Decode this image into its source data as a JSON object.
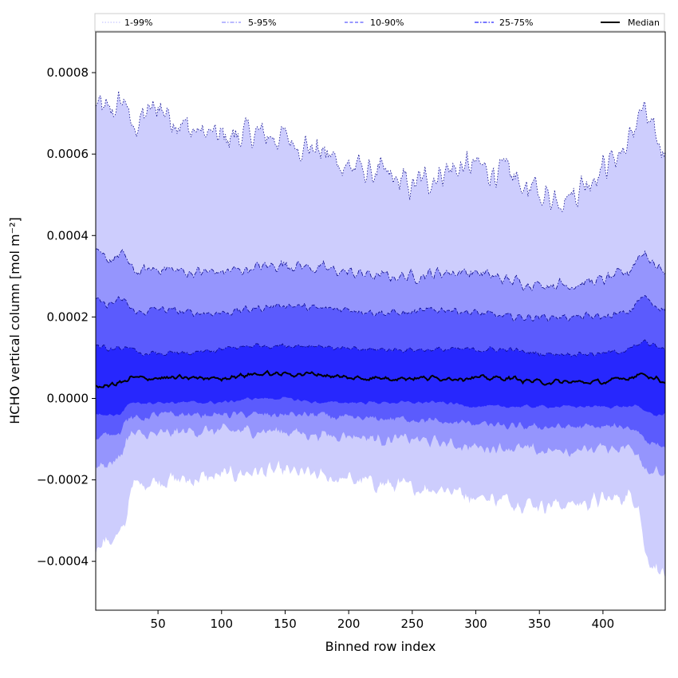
{
  "chart_data": {
    "type": "area",
    "xlabel": "Binned row index",
    "ylabel": "HCHO vertical column [mol m⁻²]",
    "xlim": [
      1,
      449
    ],
    "ylim": [
      -0.00052,
      0.0009
    ],
    "x_ticks": [
      50,
      100,
      150,
      200,
      250,
      300,
      350,
      400
    ],
    "x_tick_labels": [
      "50",
      "100",
      "150",
      "200",
      "250",
      "300",
      "350",
      "400"
    ],
    "y_ticks": [
      -0.0004,
      -0.0002,
      0.0,
      0.0002,
      0.0004,
      0.0006,
      0.0008
    ],
    "y_tick_labels": [
      "−0.0004",
      "−0.0002",
      "0.0000",
      "0.0002",
      "0.0004",
      "0.0006",
      "0.0008"
    ],
    "grid": false,
    "legend_position": "top",
    "x_knots": [
      1,
      10,
      20,
      25,
      28,
      35,
      50,
      75,
      100,
      125,
      150,
      175,
      200,
      225,
      250,
      275,
      300,
      325,
      350,
      375,
      400,
      420,
      428,
      433,
      440,
      449
    ],
    "series": [
      {
        "name": "1-99%",
        "style": "dotted",
        "color": "#c8c8ff",
        "fill": "#cdcdfd",
        "upper": [
          0.00072,
          0.0007,
          0.00072,
          0.00074,
          0.00066,
          0.00068,
          0.00072,
          0.00066,
          0.00064,
          0.00065,
          0.00064,
          0.00061,
          0.00057,
          0.00055,
          0.00052,
          0.00056,
          0.00057,
          0.00055,
          0.0005,
          0.0005,
          0.00057,
          0.00062,
          0.0007,
          0.0007,
          0.00064,
          0.0006
        ],
        "lower": [
          -0.00036,
          -0.00035,
          -0.00034,
          -0.0003,
          -0.00022,
          -0.00021,
          -0.0002,
          -0.0002,
          -0.00019,
          -0.00018,
          -0.00018,
          -0.00019,
          -0.0002,
          -0.00021,
          -0.00022,
          -0.00022,
          -0.00024,
          -0.00025,
          -0.00026,
          -0.00026,
          -0.00025,
          -0.00024,
          -0.00025,
          -0.00038,
          -0.00041,
          -0.00043
        ]
      },
      {
        "name": "5-95%",
        "style": "dashdot",
        "color": "#8f8fff",
        "fill": "#9595fd",
        "upper": [
          0.00035,
          0.00034,
          0.00035,
          0.00035,
          0.00032,
          0.00031,
          0.00032,
          0.00031,
          0.00031,
          0.00032,
          0.00033,
          0.00032,
          0.00031,
          0.0003,
          0.0003,
          0.00031,
          0.00031,
          0.00029,
          0.00028,
          0.00028,
          0.00029,
          0.00031,
          0.00035,
          0.00036,
          0.00033,
          0.00031
        ],
        "lower": [
          -0.00017,
          -0.00016,
          -0.00015,
          -0.0001,
          -9e-05,
          -9e-05,
          -9e-05,
          -8e-05,
          -8e-05,
          -8e-05,
          -8e-05,
          -9e-05,
          -9e-05,
          -0.0001,
          -0.0001,
          -0.00011,
          -0.00012,
          -0.00012,
          -0.00013,
          -0.00013,
          -0.00012,
          -0.00012,
          -0.00013,
          -0.00017,
          -0.00018,
          -0.00019
        ]
      },
      {
        "name": "10-90%",
        "style": "dashed",
        "color": "#5a5aff",
        "fill": "#5b5bfd",
        "upper": [
          0.00024,
          0.00023,
          0.00024,
          0.00024,
          0.00022,
          0.00021,
          0.00022,
          0.00021,
          0.00021,
          0.00022,
          0.00023,
          0.00022,
          0.00022,
          0.00021,
          0.00021,
          0.00022,
          0.00021,
          0.0002,
          0.0002,
          0.0002,
          0.0002,
          0.00021,
          0.00024,
          0.00025,
          0.00023,
          0.00022
        ],
        "lower": [
          -0.0001,
          -9e-05,
          -8e-05,
          -5e-05,
          -5e-05,
          -5e-05,
          -4e-05,
          -4e-05,
          -4e-05,
          -4e-05,
          -4e-05,
          -4e-05,
          -5e-05,
          -5e-05,
          -5e-05,
          -6e-05,
          -6e-05,
          -7e-05,
          -7e-05,
          -7e-05,
          -7e-05,
          -7e-05,
          -8e-05,
          -0.0001,
          -0.00011,
          -0.00012
        ]
      },
      {
        "name": "25-75%",
        "style": "dashdot",
        "color": "#2626ff",
        "fill": "#2727fd",
        "upper": [
          0.00013,
          0.00012,
          0.00012,
          0.00013,
          0.00012,
          0.00011,
          0.00011,
          0.00011,
          0.00012,
          0.00013,
          0.00013,
          0.00013,
          0.00012,
          0.00012,
          0.00012,
          0.00012,
          0.00012,
          0.00012,
          0.00011,
          0.00011,
          0.00011,
          0.00012,
          0.00013,
          0.00014,
          0.00013,
          0.00012
        ],
        "lower": [
          -4e-05,
          -4e-05,
          -4e-05,
          -2e-05,
          -1e-05,
          -1e-05,
          -1e-05,
          -1e-05,
          -1e-05,
          0.0,
          0.0,
          -1e-05,
          -1e-05,
          -1e-05,
          -1e-05,
          -1e-05,
          -2e-05,
          -2e-05,
          -2e-05,
          -2e-05,
          -2e-05,
          -2e-05,
          -2e-05,
          -3e-05,
          -4e-05,
          -4e-05
        ]
      },
      {
        "name": "Median",
        "style": "solid",
        "color": "#000000",
        "values": [
          3e-05,
          3e-05,
          4e-05,
          4e-05,
          5e-05,
          5e-05,
          5e-05,
          5e-05,
          5e-05,
          6e-05,
          6e-05,
          6e-05,
          5e-05,
          5e-05,
          5e-05,
          5e-05,
          5e-05,
          5e-05,
          4e-05,
          4e-05,
          4e-05,
          5e-05,
          6e-05,
          6e-05,
          5e-05,
          4e-05
        ]
      }
    ]
  }
}
